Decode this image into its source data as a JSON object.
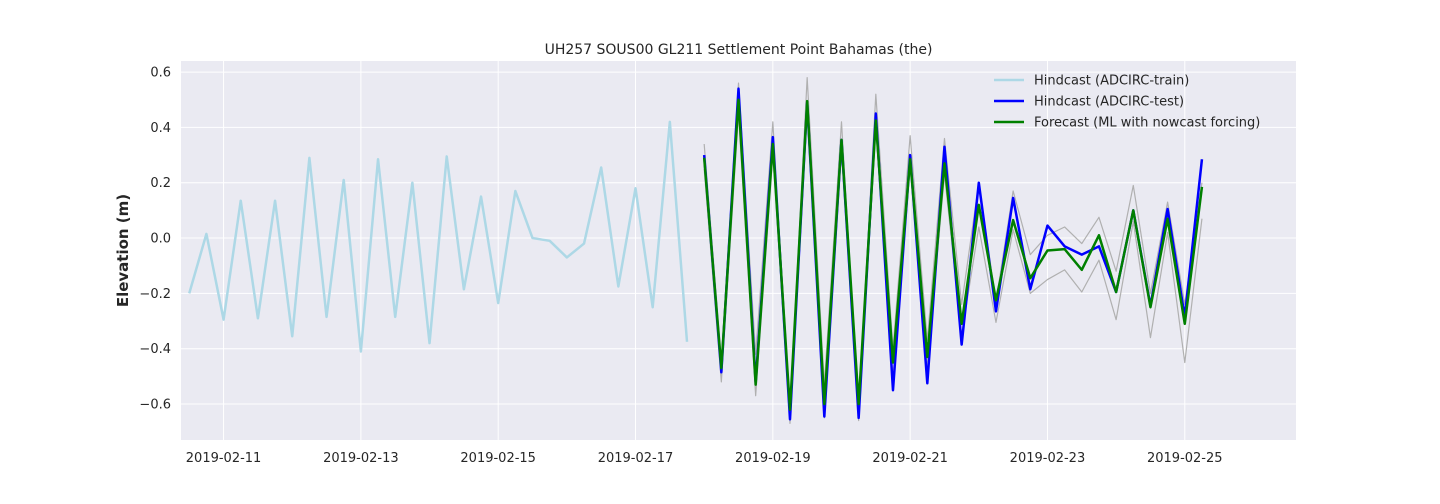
{
  "chart_data": {
    "type": "line",
    "title": "UH257 SOUS00 GL211 Settlement Point Bahamas (the)",
    "xlabel": "",
    "ylabel": "Elevation (m)",
    "xlim": [
      -0.62,
      15.62
    ],
    "ylim": [
      -0.73,
      0.64
    ],
    "x_ticks": [
      {
        "pos": 0.0,
        "label": "2019-02-11"
      },
      {
        "pos": 2.0,
        "label": "2019-02-13"
      },
      {
        "pos": 4.0,
        "label": "2019-02-15"
      },
      {
        "pos": 6.0,
        "label": "2019-02-17"
      },
      {
        "pos": 8.0,
        "label": "2019-02-19"
      },
      {
        "pos": 10.0,
        "label": "2019-02-21"
      },
      {
        "pos": 12.0,
        "label": "2019-02-23"
      },
      {
        "pos": 14.0,
        "label": "2019-02-25"
      }
    ],
    "y_ticks": [
      {
        "pos": 0.6,
        "label": "0.6"
      },
      {
        "pos": 0.4,
        "label": "0.4"
      },
      {
        "pos": 0.2,
        "label": "0.2"
      },
      {
        "pos": 0.0,
        "label": "0.0"
      },
      {
        "pos": -0.2,
        "label": "−0.2"
      },
      {
        "pos": -0.4,
        "label": "−0.4"
      },
      {
        "pos": -0.6,
        "label": "−0.6"
      }
    ],
    "grid": true,
    "legend_position": "top-right",
    "colors": {
      "plot_bg": "#eaeaf2",
      "grid": "#ffffff",
      "train": "#add8e6",
      "test": "#0000ff",
      "forecast": "#008000",
      "band": "#b0b0b0"
    },
    "series": [
      {
        "name": "Hindcast (ADCIRC-train)",
        "role": "train",
        "x": [
          -0.5,
          -0.25,
          0.0,
          0.25,
          0.5,
          0.75,
          1.0,
          1.25,
          1.5,
          1.75,
          2.0,
          2.25,
          2.5,
          2.75,
          3.0,
          3.25,
          3.5,
          3.75,
          4.0,
          4.25,
          4.5,
          4.75,
          5.0,
          5.25,
          5.5,
          5.75,
          6.0,
          6.25,
          6.5,
          6.75
        ],
        "values": [
          -0.2,
          0.015,
          -0.295,
          0.135,
          -0.29,
          0.135,
          -0.355,
          0.29,
          -0.285,
          0.21,
          -0.41,
          0.285,
          -0.285,
          0.2,
          -0.38,
          0.295,
          -0.185,
          0.15,
          -0.235,
          0.17,
          0.0,
          -0.01,
          -0.07,
          -0.02,
          0.255,
          -0.175,
          0.18,
          -0.25,
          0.42,
          -0.375
        ]
      },
      {
        "name": "Envelope upper",
        "role": "band",
        "x": [
          7.0,
          7.25,
          7.5,
          7.75,
          8.0,
          8.25,
          8.5,
          8.75,
          9.0,
          9.25,
          9.5,
          9.75,
          10.0,
          10.25,
          10.5,
          10.75,
          11.0,
          11.25,
          11.5,
          11.75,
          12.0,
          12.25,
          12.5,
          12.75,
          13.0,
          13.25,
          13.5,
          13.75,
          14.0,
          14.25
        ],
        "values": [
          0.34,
          -0.44,
          0.56,
          -0.42,
          0.42,
          -0.63,
          0.58,
          -0.53,
          0.42,
          -0.63,
          0.52,
          -0.4,
          0.37,
          -0.37,
          0.36,
          -0.24,
          0.2,
          -0.23,
          0.17,
          -0.06,
          0.01,
          0.04,
          -0.02,
          0.075,
          -0.12,
          0.19,
          -0.2,
          0.13,
          -0.24,
          0.2
        ]
      },
      {
        "name": "Envelope lower",
        "role": "band",
        "x": [
          7.0,
          7.25,
          7.5,
          7.75,
          8.0,
          8.25,
          8.5,
          8.75,
          9.0,
          9.25,
          9.5,
          9.75,
          10.0,
          10.25,
          10.5,
          10.75,
          11.0,
          11.25,
          11.5,
          11.75,
          12.0,
          12.25,
          12.5,
          12.75,
          13.0,
          13.25,
          13.5,
          13.75,
          14.0,
          14.25
        ],
        "values": [
          0.25,
          -0.52,
          0.45,
          -0.57,
          0.3,
          -0.67,
          0.45,
          -0.65,
          0.31,
          -0.66,
          0.4,
          -0.5,
          0.25,
          -0.47,
          0.23,
          -0.35,
          0.04,
          -0.305,
          0.03,
          -0.2,
          -0.15,
          -0.115,
          -0.195,
          -0.08,
          -0.295,
          0.06,
          -0.36,
          0.02,
          -0.45,
          0.07
        ]
      },
      {
        "name": "Hindcast (ADCIRC-test)",
        "role": "test",
        "x": [
          7.0,
          7.25,
          7.5,
          7.75,
          8.0,
          8.25,
          8.5,
          8.75,
          9.0,
          9.25,
          9.5,
          9.75,
          10.0,
          10.25,
          10.5,
          10.75,
          11.0,
          11.25,
          11.5,
          11.75,
          12.0,
          12.25,
          12.5,
          12.75,
          13.0,
          13.25,
          13.5,
          13.75,
          14.0,
          14.25
        ],
        "values": [
          0.3,
          -0.485,
          0.54,
          -0.52,
          0.365,
          -0.655,
          0.49,
          -0.645,
          0.355,
          -0.65,
          0.45,
          -0.55,
          0.3,
          -0.525,
          0.33,
          -0.385,
          0.2,
          -0.265,
          0.145,
          -0.185,
          0.045,
          -0.03,
          -0.06,
          -0.03,
          -0.195,
          0.1,
          -0.245,
          0.105,
          -0.285,
          0.285
        ]
      },
      {
        "name": "Forecast (ML with nowcast forcing)",
        "role": "forecast",
        "x": [
          7.0,
          7.25,
          7.5,
          7.75,
          8.0,
          8.25,
          8.5,
          8.75,
          9.0,
          9.25,
          9.5,
          9.75,
          10.0,
          10.25,
          10.5,
          10.75,
          11.0,
          11.25,
          11.5,
          11.75,
          12.0,
          12.25,
          12.5,
          12.75,
          13.0,
          13.25,
          13.5,
          13.75,
          14.0,
          14.25
        ],
        "values": [
          0.29,
          -0.47,
          0.5,
          -0.53,
          0.34,
          -0.62,
          0.495,
          -0.6,
          0.355,
          -0.6,
          0.425,
          -0.45,
          0.285,
          -0.43,
          0.27,
          -0.31,
          0.12,
          -0.225,
          0.065,
          -0.145,
          -0.045,
          -0.04,
          -0.115,
          0.01,
          -0.195,
          0.1,
          -0.25,
          0.07,
          -0.31,
          0.185
        ]
      }
    ]
  }
}
